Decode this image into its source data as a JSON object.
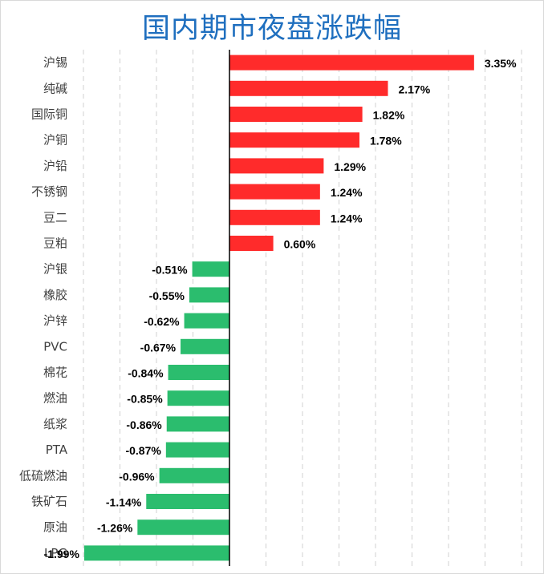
{
  "chart_data": {
    "type": "bar",
    "orientation": "horizontal",
    "title": "国内期市夜盘涨跌幅",
    "xlim": [
      -2.0,
      4.0
    ],
    "grid": true,
    "value_suffix": "%",
    "categories": [
      "沪锡",
      "纯碱",
      "国际铜",
      "沪铜",
      "沪铅",
      "不锈钢",
      "豆二",
      "豆粕",
      "沪银",
      "橡胶",
      "沪锌",
      "PVC",
      "棉花",
      "燃油",
      "纸浆",
      "PTA",
      "低硫燃油",
      "铁矿石",
      "原油",
      "LPG"
    ],
    "values": [
      3.35,
      2.17,
      1.82,
      1.78,
      1.29,
      1.24,
      1.24,
      0.6,
      -0.51,
      -0.55,
      -0.62,
      -0.67,
      -0.84,
      -0.85,
      -0.86,
      -0.87,
      -0.96,
      -1.14,
      -1.26,
      -1.99
    ],
    "labels": [
      "3.35%",
      "2.17%",
      "1.82%",
      "1.78%",
      "1.29%",
      "1.24%",
      "1.24%",
      "0.60%",
      "-0.51%",
      "-0.55%",
      "-0.62%",
      "-0.67%",
      "-0.84%",
      "-0.85%",
      "-0.86%",
      "-0.87%",
      "-0.96%",
      "-1.14%",
      "-1.26%",
      "-1.99%"
    ],
    "colors": {
      "positive": "#ff2b2b",
      "negative": "#2bbd6e",
      "title": "#1f6fbf"
    }
  }
}
